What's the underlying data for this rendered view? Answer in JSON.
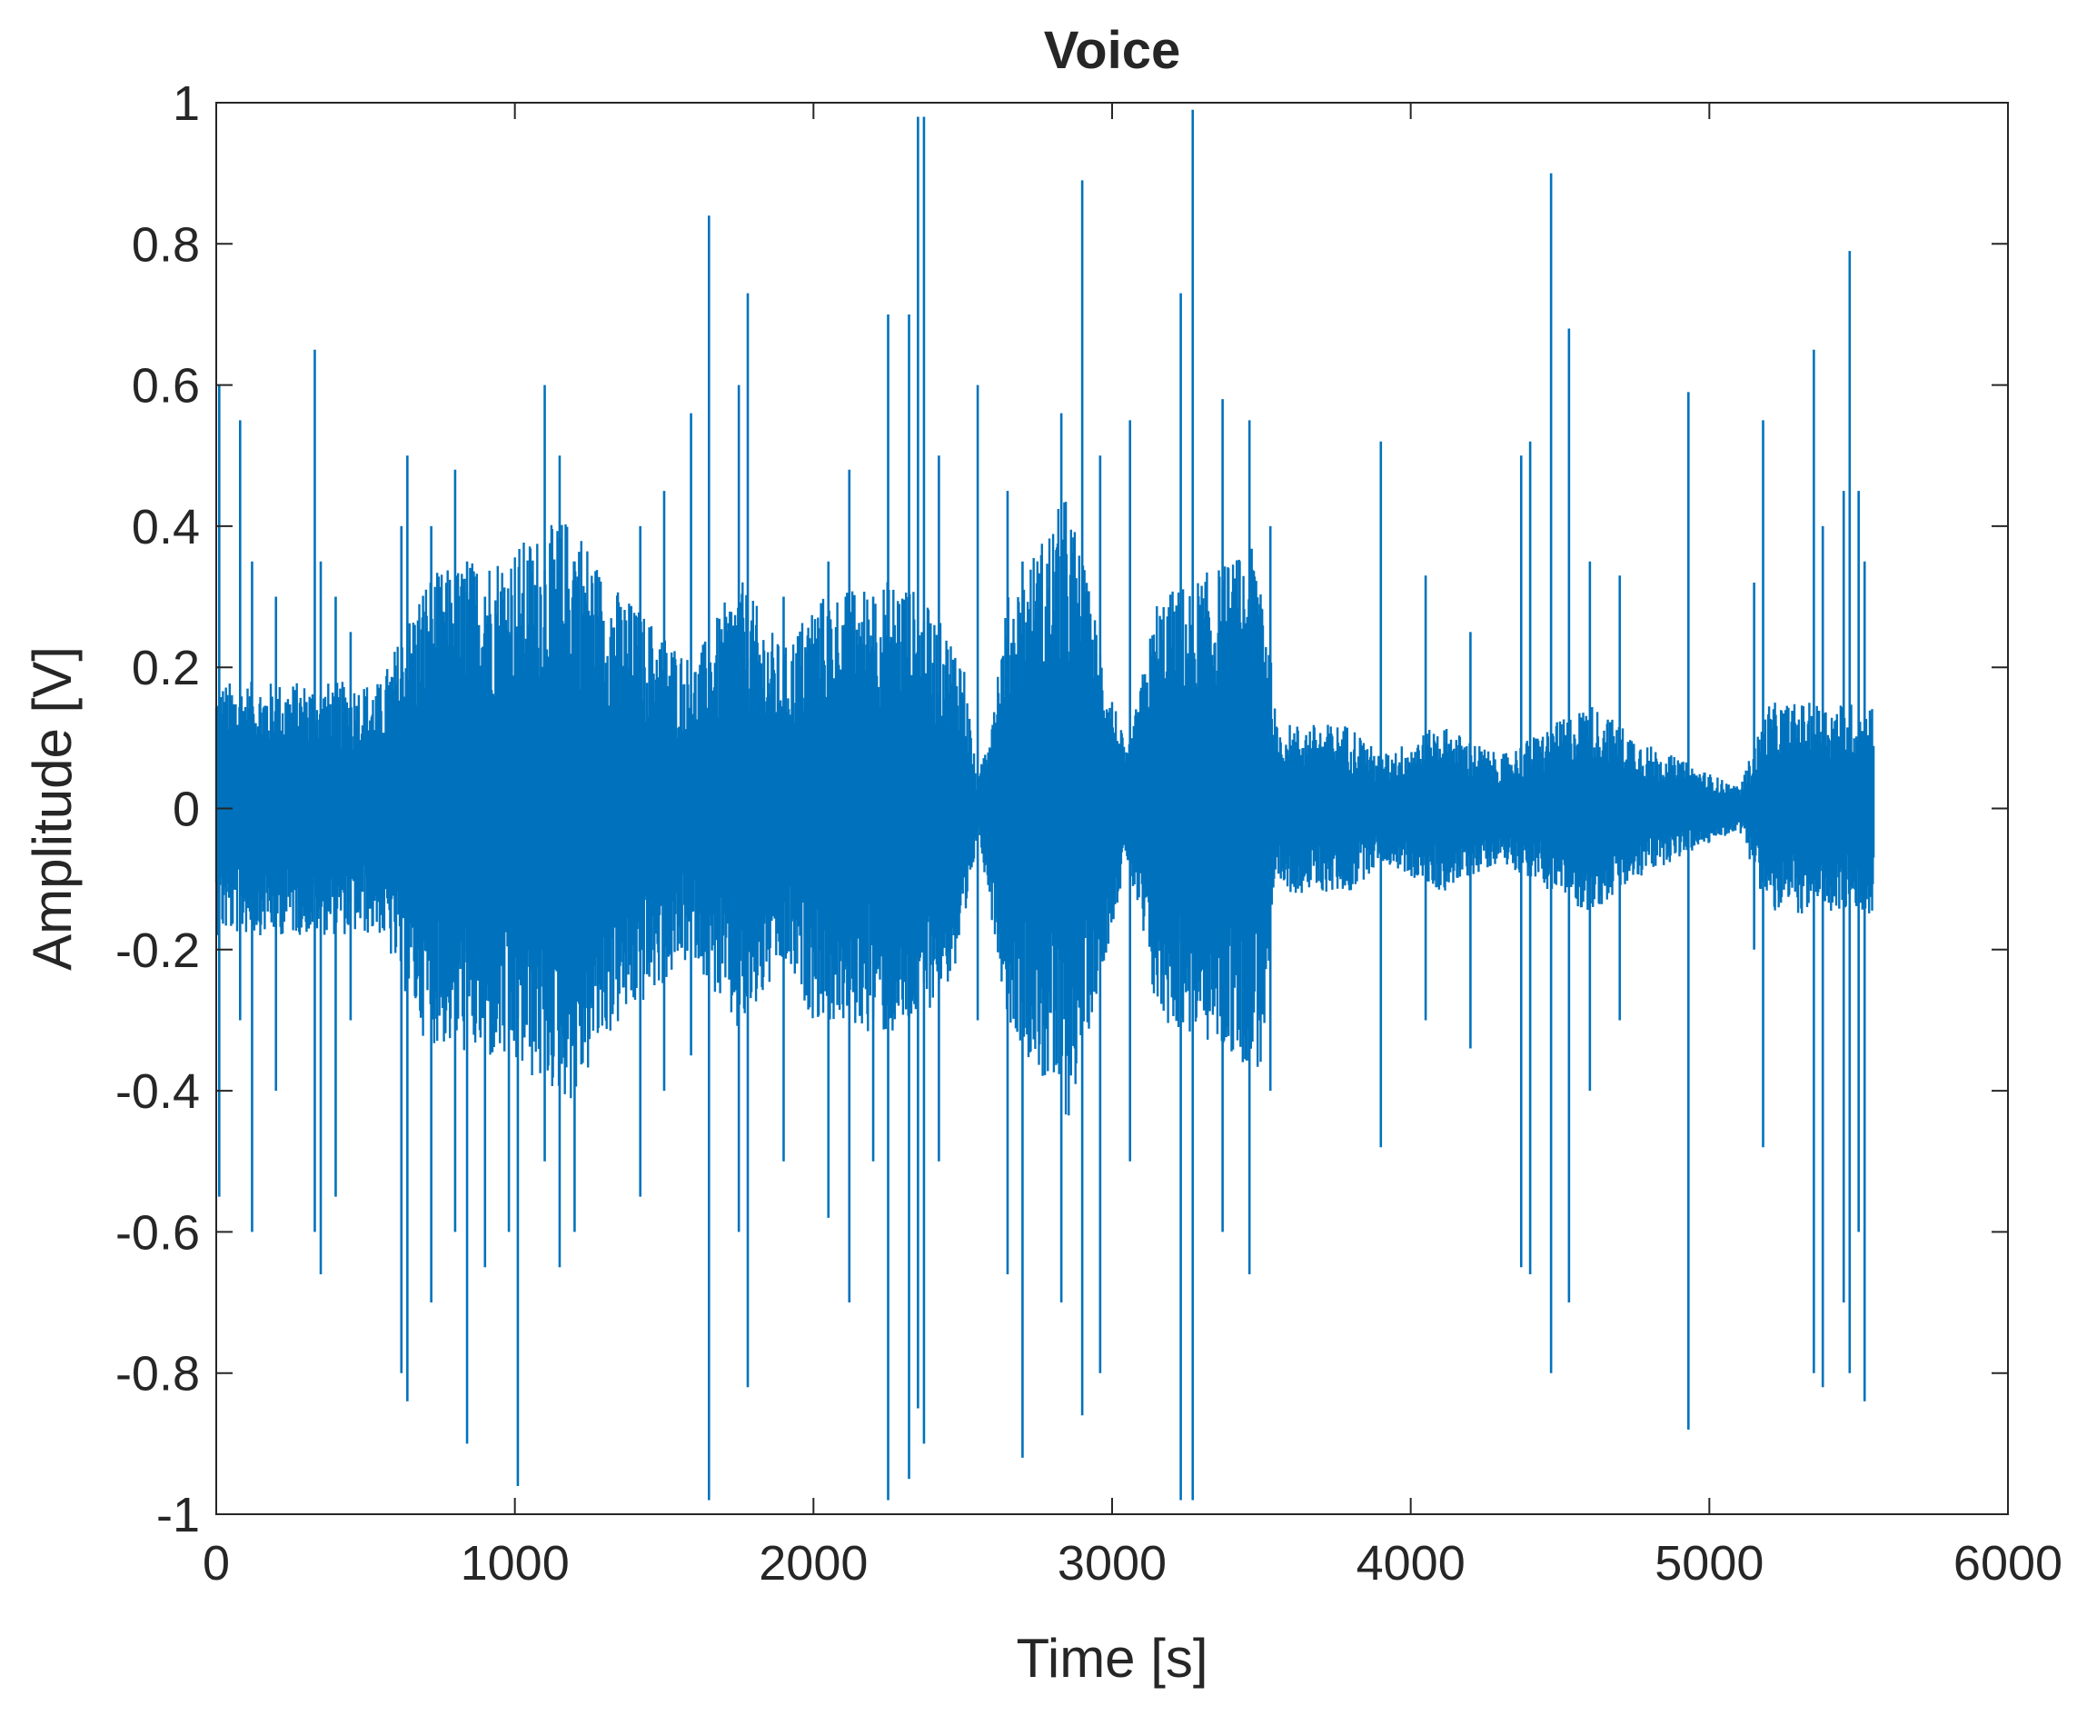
{
  "chart_data": {
    "type": "line",
    "title": "Voice",
    "xlabel": "Time [s]",
    "ylabel": "Amplitude [V]",
    "xlim": [
      0,
      6000
    ],
    "ylim": [
      -1,
      1
    ],
    "xticks": [
      0,
      1000,
      2000,
      3000,
      4000,
      5000,
      6000
    ],
    "xtick_labels": [
      "0",
      "1000",
      "2000",
      "3000",
      "4000",
      "5000",
      "6000"
    ],
    "yticks": [
      1,
      0.8,
      0.6,
      0.4,
      0.2,
      0,
      -0.2,
      -0.4,
      -0.6,
      -0.8,
      -1
    ],
    "ytick_labels": [
      "1",
      "0.8",
      "0.6",
      "0.4",
      "0.2",
      "0",
      "-0.2",
      "-0.4",
      "-0.6",
      "-0.8",
      "-1"
    ],
    "grid": false,
    "series": [
      {
        "color": "#0072BD",
        "x_range": [
          0,
          5550
        ],
        "envelope": [
          {
            "t": 0,
            "a": 0.12
          },
          {
            "t": 200,
            "a": 0.12
          },
          {
            "t": 550,
            "a": 0.12
          },
          {
            "t": 700,
            "a": 0.22
          },
          {
            "t": 1000,
            "a": 0.25
          },
          {
            "t": 1200,
            "a": 0.28
          },
          {
            "t": 1300,
            "a": 0.22
          },
          {
            "t": 1600,
            "a": 0.14
          },
          {
            "t": 1750,
            "a": 0.22
          },
          {
            "t": 1900,
            "a": 0.15
          },
          {
            "t": 2000,
            "a": 0.2
          },
          {
            "t": 2300,
            "a": 0.22
          },
          {
            "t": 2500,
            "a": 0.15
          },
          {
            "t": 2550,
            "a": 0.02
          },
          {
            "t": 2650,
            "a": 0.2
          },
          {
            "t": 2850,
            "a": 0.3
          },
          {
            "t": 3050,
            "a": 0.05
          },
          {
            "t": 3150,
            "a": 0.2
          },
          {
            "t": 3500,
            "a": 0.25
          },
          {
            "t": 3550,
            "a": 0.08
          },
          {
            "t": 3800,
            "a": 0.08
          },
          {
            "t": 3900,
            "a": 0.05
          },
          {
            "t": 4100,
            "a": 0.08
          },
          {
            "t": 4300,
            "a": 0.05
          },
          {
            "t": 4600,
            "a": 0.1
          },
          {
            "t": 4800,
            "a": 0.06
          },
          {
            "t": 5100,
            "a": 0.02
          },
          {
            "t": 5200,
            "a": 0.1
          },
          {
            "t": 5550,
            "a": 0.1
          }
        ],
        "spikes": [
          {
            "t": 10,
            "max": 0.6,
            "min": -0.55
          },
          {
            "t": 80,
            "max": 0.55,
            "min": -0.3
          },
          {
            "t": 120,
            "max": 0.35,
            "min": -0.6
          },
          {
            "t": 200,
            "max": 0.3,
            "min": -0.4
          },
          {
            "t": 330,
            "max": 0.65,
            "min": -0.6
          },
          {
            "t": 350,
            "max": 0.35,
            "min": -0.66
          },
          {
            "t": 400,
            "max": 0.3,
            "min": -0.55
          },
          {
            "t": 450,
            "max": 0.25,
            "min": -0.3
          },
          {
            "t": 620,
            "max": 0.4,
            "min": -0.8
          },
          {
            "t": 640,
            "max": 0.5,
            "min": -0.84
          },
          {
            "t": 720,
            "max": 0.4,
            "min": -0.7
          },
          {
            "t": 800,
            "max": 0.48,
            "min": -0.6
          },
          {
            "t": 840,
            "max": 0.35,
            "min": -0.9
          },
          {
            "t": 900,
            "max": 0.3,
            "min": -0.65
          },
          {
            "t": 980,
            "max": 0.25,
            "min": -0.6
          },
          {
            "t": 1010,
            "max": 0.25,
            "min": -0.96
          },
          {
            "t": 1100,
            "max": 0.6,
            "min": -0.5
          },
          {
            "t": 1150,
            "max": 0.5,
            "min": -0.65
          },
          {
            "t": 1200,
            "max": 0.35,
            "min": -0.6
          },
          {
            "t": 1420,
            "max": 0.4,
            "min": -0.55
          },
          {
            "t": 1500,
            "max": 0.45,
            "min": -0.4
          },
          {
            "t": 1590,
            "max": 0.56,
            "min": -0.35
          },
          {
            "t": 1650,
            "max": 0.84,
            "min": -0.98
          },
          {
            "t": 1750,
            "max": 0.6,
            "min": -0.6
          },
          {
            "t": 1780,
            "max": 0.73,
            "min": -0.82
          },
          {
            "t": 1900,
            "max": 0.3,
            "min": -0.5
          },
          {
            "t": 2050,
            "max": 0.35,
            "min": -0.58
          },
          {
            "t": 2120,
            "max": 0.48,
            "min": -0.7
          },
          {
            "t": 2200,
            "max": 0.3,
            "min": -0.5
          },
          {
            "t": 2250,
            "max": 0.7,
            "min": -0.98
          },
          {
            "t": 2320,
            "max": 0.7,
            "min": -0.95
          },
          {
            "t": 2350,
            "max": 0.98,
            "min": -0.85
          },
          {
            "t": 2370,
            "max": 0.98,
            "min": -0.9
          },
          {
            "t": 2420,
            "max": 0.5,
            "min": -0.5
          },
          {
            "t": 2550,
            "max": 0.6,
            "min": -0.3
          },
          {
            "t": 2650,
            "max": 0.45,
            "min": -0.66
          },
          {
            "t": 2700,
            "max": 0.35,
            "min": -0.92
          },
          {
            "t": 2830,
            "max": 0.56,
            "min": -0.7
          },
          {
            "t": 2900,
            "max": 0.89,
            "min": -0.86
          },
          {
            "t": 2960,
            "max": 0.5,
            "min": -0.8
          },
          {
            "t": 3060,
            "max": 0.55,
            "min": -0.5
          },
          {
            "t": 3230,
            "max": 0.73,
            "min": -0.98
          },
          {
            "t": 3270,
            "max": 0.99,
            "min": -0.98
          },
          {
            "t": 3370,
            "max": 0.58,
            "min": -0.6
          },
          {
            "t": 3460,
            "max": 0.55,
            "min": -0.66
          },
          {
            "t": 3530,
            "max": 0.4,
            "min": -0.4
          },
          {
            "t": 3900,
            "max": 0.52,
            "min": -0.48
          },
          {
            "t": 4050,
            "max": 0.33,
            "min": -0.3
          },
          {
            "t": 4200,
            "max": 0.25,
            "min": -0.34
          },
          {
            "t": 4370,
            "max": 0.5,
            "min": -0.65
          },
          {
            "t": 4400,
            "max": 0.52,
            "min": -0.66
          },
          {
            "t": 4470,
            "max": 0.9,
            "min": -0.8
          },
          {
            "t": 4530,
            "max": 0.68,
            "min": -0.7
          },
          {
            "t": 4600,
            "max": 0.35,
            "min": -0.4
          },
          {
            "t": 4700,
            "max": 0.33,
            "min": -0.3
          },
          {
            "t": 4930,
            "max": 0.59,
            "min": -0.88
          },
          {
            "t": 5150,
            "max": 0.32,
            "min": -0.2
          },
          {
            "t": 5180,
            "max": 0.55,
            "min": -0.48
          },
          {
            "t": 5350,
            "max": 0.65,
            "min": -0.8
          },
          {
            "t": 5380,
            "max": 0.4,
            "min": -0.82
          },
          {
            "t": 5450,
            "max": 0.45,
            "min": -0.7
          },
          {
            "t": 5470,
            "max": 0.79,
            "min": -0.8
          },
          {
            "t": 5500,
            "max": 0.45,
            "min": -0.6
          },
          {
            "t": 5520,
            "max": 0.35,
            "min": -0.84
          }
        ]
      }
    ]
  }
}
